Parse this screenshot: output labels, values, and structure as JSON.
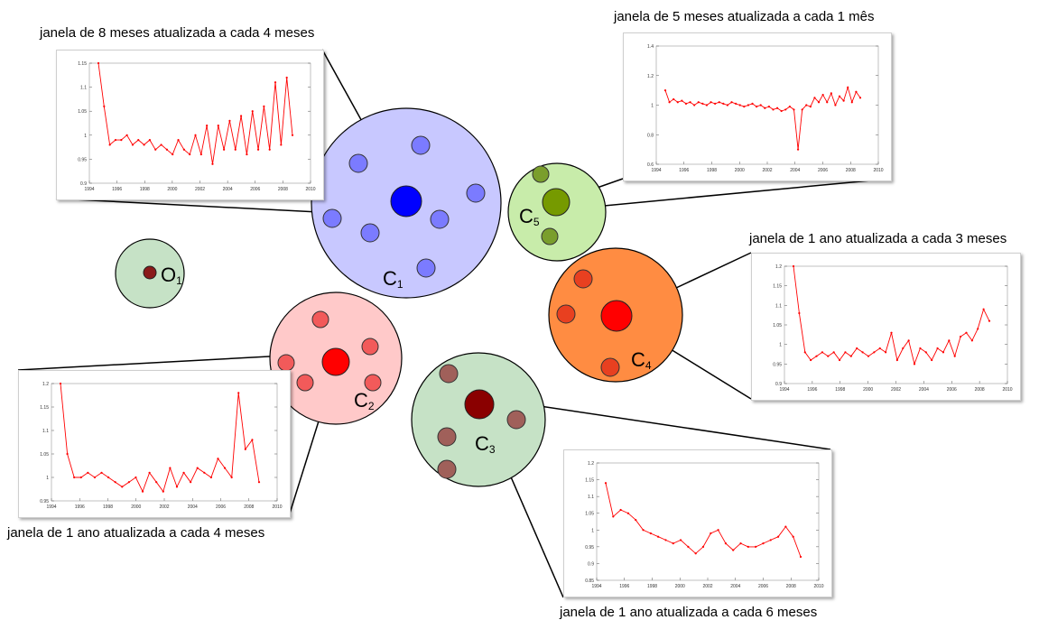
{
  "colors": {
    "c1": {
      "fill": "#c8c8ff",
      "member": "#7b7bff",
      "center": "#0000ff"
    },
    "c2": {
      "fill": "#ffc9c9",
      "member": "#f25a5a",
      "center": "#ff0000"
    },
    "c3": {
      "fill": "#c6e2c6",
      "member": "#a0605a",
      "center": "#8a0000"
    },
    "c4": {
      "fill": "#ff8c42",
      "member": "#e84020",
      "center": "#ff0000"
    },
    "c5": {
      "fill": "#c8ecaa",
      "member": "#7a9e2c",
      "center": "#769a00"
    },
    "o1": {
      "fill": "#c6e2c6",
      "center": "#8a1a1a"
    },
    "plot_line": "#ff0000"
  },
  "clusters": [
    {
      "id": "c1",
      "label": "C",
      "sub": "1"
    },
    {
      "id": "c2",
      "label": "C",
      "sub": "2"
    },
    {
      "id": "c3",
      "label": "C",
      "sub": "3"
    },
    {
      "id": "c4",
      "label": "C",
      "sub": "4"
    },
    {
      "id": "c5",
      "label": "C",
      "sub": "5"
    },
    {
      "id": "o1",
      "label": "O",
      "sub": "1"
    }
  ],
  "captions": {
    "c1": "janela de 8 meses atualizada a cada 4 meses",
    "c5": "janela de 5 meses atualizada a cada 1 mês",
    "c4": "janela de 1 ano atualizada a cada 3 meses",
    "c2": "janela de 1 ano atualizada a cada 4 meses",
    "c3": "janela de 1 ano atualizada a cada 6 meses"
  },
  "chart_data": [
    {
      "id": "c1",
      "type": "line",
      "x_ticks": [
        "1994",
        "1996",
        "1998",
        "2000",
        "2002",
        "2004",
        "2006",
        "2008",
        "2010"
      ],
      "y_ticks": [
        "0.9",
        "0.95",
        "1",
        "1.05",
        "1.1",
        "1.15"
      ],
      "ylim": [
        0.9,
        1.15
      ],
      "xlim": [
        1994,
        2010
      ],
      "values": [
        1.15,
        1.06,
        0.98,
        0.99,
        0.99,
        1.0,
        0.98,
        0.99,
        0.98,
        0.99,
        0.97,
        0.98,
        0.97,
        0.96,
        0.99,
        0.97,
        0.96,
        1.0,
        0.96,
        1.02,
        0.94,
        1.02,
        0.97,
        1.03,
        0.97,
        1.04,
        0.96,
        1.05,
        0.97,
        1.06,
        0.97,
        1.11,
        0.98,
        1.12,
        1.0
      ]
    },
    {
      "id": "c5",
      "type": "line",
      "x_ticks": [
        "1994",
        "1996",
        "1998",
        "2000",
        "2002",
        "2004",
        "2006",
        "2008",
        "2010"
      ],
      "y_ticks": [
        "0.6",
        "0.8",
        "1",
        "1.2",
        "1.4"
      ],
      "ylim": [
        0.6,
        1.4
      ],
      "xlim": [
        1994,
        2010
      ],
      "values": [
        1.1,
        1.02,
        1.04,
        1.02,
        1.03,
        1.01,
        1.02,
        1.0,
        1.02,
        1.01,
        1.0,
        1.02,
        1.01,
        1.02,
        1.01,
        1.0,
        1.02,
        1.01,
        1.0,
        0.99,
        1.0,
        1.01,
        0.99,
        1.0,
        0.98,
        0.99,
        0.97,
        0.98,
        0.96,
        0.97,
        0.99,
        0.97,
        0.7,
        0.97,
        1.0,
        0.99,
        1.05,
        1.02,
        1.07,
        1.02,
        1.08,
        1.0,
        1.06,
        1.03,
        1.12,
        1.02,
        1.09,
        1.05
      ]
    },
    {
      "id": "c4",
      "type": "line",
      "x_ticks": [
        "1994",
        "1996",
        "1998",
        "2000",
        "2002",
        "2004",
        "2006",
        "2008",
        "2010"
      ],
      "y_ticks": [
        "0.9",
        "0.95",
        "1",
        "1.05",
        "1.1",
        "1.15",
        "1.2"
      ],
      "ylim": [
        0.9,
        1.2
      ],
      "xlim": [
        1994,
        2010
      ],
      "values": [
        1.2,
        1.08,
        0.98,
        0.96,
        0.97,
        0.98,
        0.97,
        0.98,
        0.96,
        0.98,
        0.97,
        0.99,
        0.98,
        0.97,
        0.98,
        0.99,
        0.98,
        1.03,
        0.96,
        0.99,
        1.01,
        0.95,
        0.99,
        0.98,
        0.96,
        0.99,
        0.98,
        1.01,
        0.97,
        1.02,
        1.03,
        1.01,
        1.04,
        1.09,
        1.06
      ]
    },
    {
      "id": "c2",
      "type": "line",
      "x_ticks": [
        "1994",
        "1996",
        "1998",
        "2000",
        "2002",
        "2004",
        "2006",
        "2008",
        "2010"
      ],
      "y_ticks": [
        "0.95",
        "1",
        "1.05",
        "1.1",
        "1.15",
        "1.2"
      ],
      "ylim": [
        0.95,
        1.2
      ],
      "xlim": [
        1994,
        2010
      ],
      "values": [
        1.2,
        1.05,
        1.0,
        1.0,
        1.01,
        1.0,
        1.01,
        1.0,
        0.99,
        0.98,
        0.99,
        1.0,
        0.97,
        1.01,
        0.99,
        0.97,
        1.02,
        0.98,
        1.01,
        0.99,
        1.02,
        1.01,
        1.0,
        1.04,
        1.02,
        1.0,
        1.18,
        1.06,
        1.08,
        0.99
      ]
    },
    {
      "id": "c3",
      "type": "line",
      "x_ticks": [
        "1994",
        "1996",
        "1998",
        "2000",
        "2002",
        "2004",
        "2006",
        "2008",
        "2010"
      ],
      "y_ticks": [
        "0.85",
        "0.9",
        "0.95",
        "1",
        "1.05",
        "1.1",
        "1.15",
        "1.2"
      ],
      "ylim": [
        0.85,
        1.2
      ],
      "xlim": [
        1994,
        2010
      ],
      "values": [
        1.14,
        1.04,
        1.06,
        1.05,
        1.03,
        1.0,
        0.99,
        0.98,
        0.97,
        0.96,
        0.97,
        0.95,
        0.93,
        0.95,
        0.99,
        1.0,
        0.96,
        0.94,
        0.96,
        0.95,
        0.95,
        0.96,
        0.97,
        0.98,
        1.01,
        0.98,
        0.92
      ]
    }
  ]
}
